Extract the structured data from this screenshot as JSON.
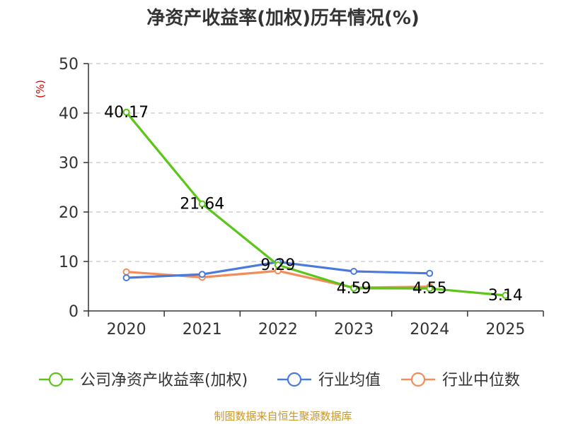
{
  "chart_data": {
    "type": "line",
    "title": "净资产收益率(加权)历年情况(%)",
    "ylabel": "(%)",
    "xlabel": "",
    "ylim": [
      0,
      50
    ],
    "yticks": [
      0,
      10,
      20,
      30,
      40,
      50
    ],
    "categories": [
      "2020",
      "2021",
      "2022",
      "2023",
      "2024",
      "2025"
    ],
    "grid": true,
    "legend_position": "bottom",
    "series": [
      {
        "name": "公司净资产收益率(加权)",
        "color": "#5cc51a",
        "values": [
          40.17,
          21.64,
          9.29,
          4.59,
          4.55,
          3.14
        ],
        "labels": [
          "40.17",
          "21.64",
          "9.29",
          "4.59",
          "4.55",
          "3.14"
        ]
      },
      {
        "name": "行业均值",
        "color": "#4a7bdc",
        "values": [
          6.7,
          7.4,
          9.9,
          8.0,
          7.6,
          null
        ]
      },
      {
        "name": "行业中位数",
        "color": "#f28c5b",
        "values": [
          7.9,
          6.8,
          8.1,
          4.7,
          4.9,
          null
        ]
      }
    ]
  },
  "source": "制图数据来自恒生聚源数据库"
}
